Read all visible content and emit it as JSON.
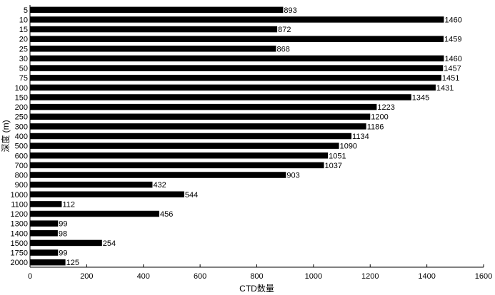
{
  "chart_data": {
    "type": "bar",
    "orientation": "horizontal",
    "xlabel": "CTD数量",
    "ylabel": "深度 (m)",
    "xlim": [
      0,
      1600
    ],
    "xticks": [
      0,
      200,
      400,
      600,
      800,
      1000,
      1200,
      1400,
      1600
    ],
    "grid": false,
    "bar_color": "#000000",
    "categories": [
      "5",
      "10",
      "15",
      "20",
      "25",
      "30",
      "50",
      "75",
      "100",
      "150",
      "200",
      "250",
      "300",
      "400",
      "500",
      "600",
      "700",
      "800",
      "900",
      "1000",
      "1100",
      "1200",
      "1300",
      "1400",
      "1500",
      "1750",
      "2000"
    ],
    "values": [
      893,
      1460,
      872,
      1459,
      868,
      1460,
      1457,
      1451,
      1431,
      1345,
      1223,
      1200,
      1186,
      1134,
      1090,
      1051,
      1037,
      903,
      432,
      544,
      112,
      456,
      99,
      98,
      254,
      99,
      125
    ]
  }
}
